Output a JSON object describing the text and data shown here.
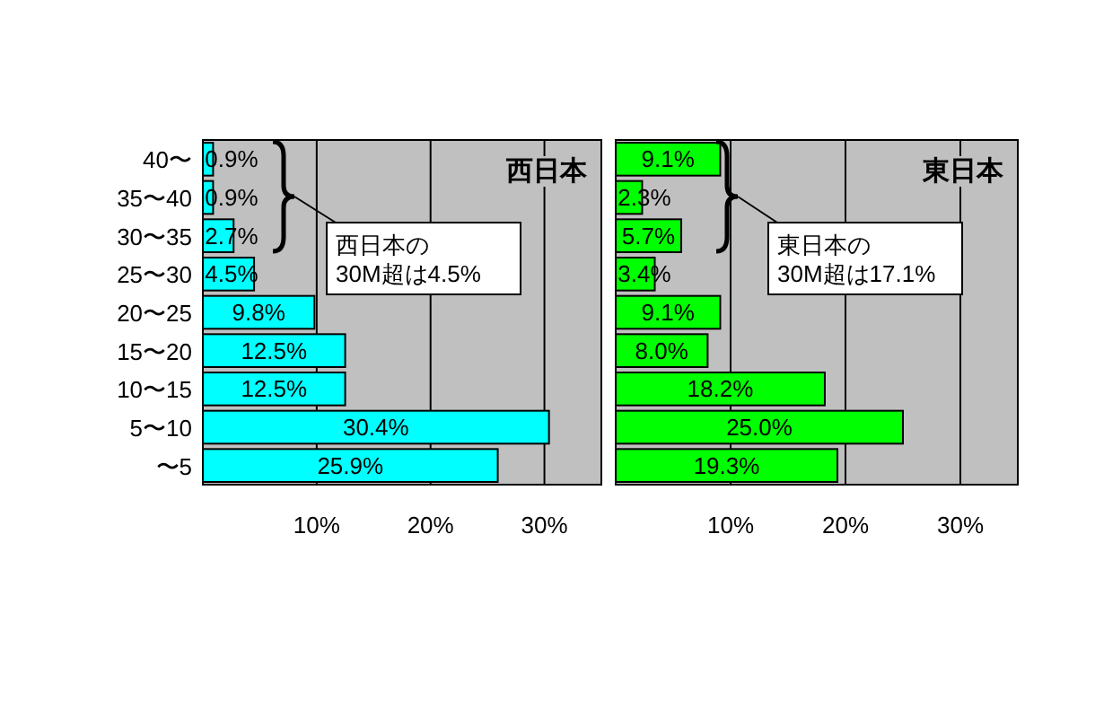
{
  "chart_data": [
    {
      "type": "bar",
      "orientation": "horizontal",
      "title": "西日本",
      "categories": [
        "40〜",
        "35〜40",
        "30〜35",
        "25〜30",
        "20〜25",
        "15〜20",
        "10〜15",
        "5〜10",
        "〜5"
      ],
      "series": [
        {
          "color": "#00ffff",
          "values": [
            0.9,
            0.9,
            2.7,
            4.5,
            9.8,
            12.5,
            12.5,
            30.4,
            25.9
          ],
          "value_labels": [
            "0.9%",
            "0.9%",
            "2.7%",
            "4.5%",
            "9.8%",
            "12.5%",
            "12.5%",
            "30.4%",
            "25.9%"
          ]
        }
      ],
      "xlim": [
        0,
        35
      ],
      "xticks": [
        {
          "value": 10,
          "label": "10%"
        },
        {
          "value": 20,
          "label": "20%"
        },
        {
          "value": 30,
          "label": "30%"
        }
      ],
      "grid": "x",
      "annotations": [
        "西日本の\n30M超は4.5%"
      ]
    },
    {
      "type": "bar",
      "orientation": "horizontal",
      "title": "東日本",
      "categories": [
        null,
        null,
        null,
        null,
        null,
        null,
        null,
        null,
        null
      ],
      "series": [
        {
          "color": "#00ff00",
          "values": [
            9.1,
            2.3,
            5.7,
            3.4,
            9.1,
            8.0,
            18.2,
            25.0,
            19.3
          ],
          "value_labels": [
            "9.1%",
            "2.3%",
            "5.7%",
            "3.4%",
            "9.1%",
            "8.0%",
            "18.2%",
            "25.0%",
            "19.3%"
          ]
        }
      ],
      "xlim": [
        0,
        35
      ],
      "xticks": [
        {
          "value": 10,
          "label": "10%"
        },
        {
          "value": 20,
          "label": "20%"
        },
        {
          "value": 30,
          "label": "30%"
        }
      ],
      "grid": "x",
      "annotations": [
        "東日本の\n30M超は17.1%"
      ]
    }
  ]
}
